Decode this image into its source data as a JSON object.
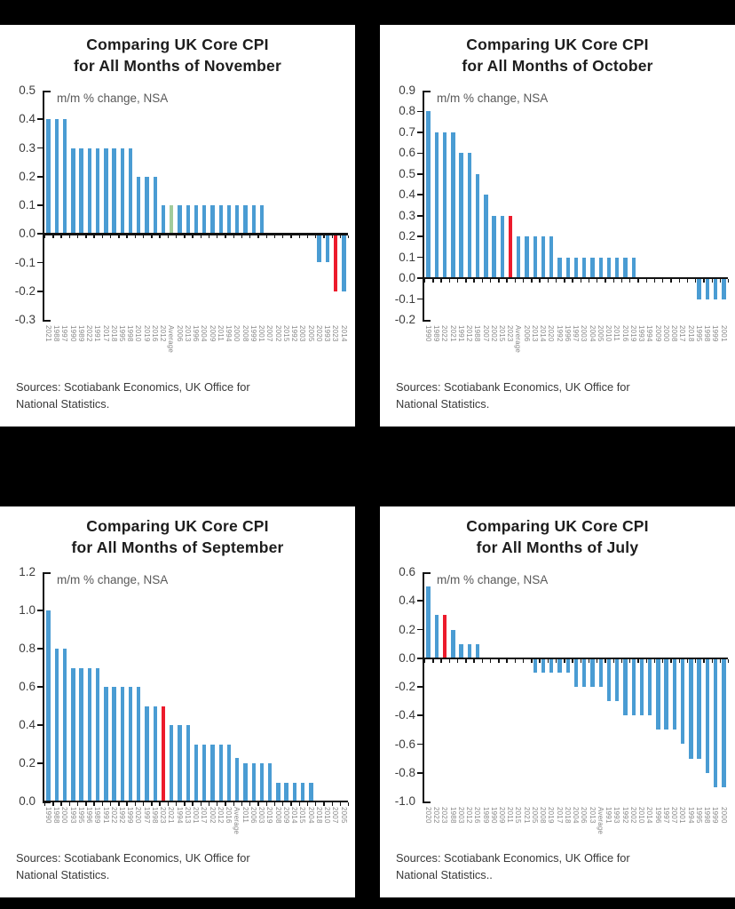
{
  "page": {
    "background": "#000000",
    "panel_background": "#ffffff"
  },
  "colors": {
    "bar_blue": "#4a9cd3",
    "bar_red": "#ec1b2c",
    "bar_green": "#a2cb9b",
    "axis": "#121212",
    "title_text": "#1d1d1d",
    "annotation_text": "#595959",
    "x_label_text": "#878787"
  },
  "chart_data": [
    {
      "type": "bar",
      "id": "november",
      "title_line1": "Comparing UK Core CPI",
      "title_line2": "for All Months of November",
      "annotation": "m/m % change, NSA",
      "sources_line1": "Sources: Scotiabank Economics, UK Office for",
      "sources_line2": "National Statistics.",
      "ylim": [
        -0.3,
        0.5
      ],
      "ytick_step": 0.1,
      "legend_position": "none",
      "grid": false,
      "categories": [
        "2021",
        "1988",
        "1997",
        "1990",
        "1989",
        "2022",
        "1991",
        "2017",
        "2018",
        "1995",
        "1998",
        "2010",
        "2019",
        "2016",
        "2012",
        "Average",
        "2006",
        "2013",
        "1996",
        "2004",
        "2009",
        "2011",
        "1994",
        "2000",
        "2008",
        "1999",
        "2001",
        "2007",
        "2002",
        "2015",
        "1992",
        "2003",
        "2005",
        "2020",
        "1993",
        "2023",
        "2014"
      ],
      "values": [
        0.4,
        0.4,
        0.4,
        0.3,
        0.3,
        0.3,
        0.3,
        0.3,
        0.3,
        0.3,
        0.3,
        0.2,
        0.2,
        0.2,
        0.1,
        0.1,
        0.1,
        0.1,
        0.1,
        0.1,
        0.1,
        0.1,
        0.1,
        0.1,
        0.1,
        0.1,
        0.1,
        0.0,
        0.0,
        0.0,
        0.0,
        0.0,
        0.0,
        -0.1,
        -0.1,
        -0.2,
        -0.2
      ],
      "bar_colors": [
        "blue",
        "blue",
        "blue",
        "blue",
        "blue",
        "blue",
        "blue",
        "blue",
        "blue",
        "blue",
        "blue",
        "blue",
        "blue",
        "blue",
        "blue",
        "green",
        "blue",
        "blue",
        "blue",
        "blue",
        "blue",
        "blue",
        "blue",
        "blue",
        "blue",
        "blue",
        "blue",
        "blue",
        "blue",
        "blue",
        "blue",
        "blue",
        "blue",
        "blue",
        "blue",
        "red",
        "blue"
      ]
    },
    {
      "type": "bar",
      "id": "october",
      "title_line1": "Comparing UK Core CPI",
      "title_line2": "for All Months of October",
      "annotation": "m/m % change, NSA",
      "sources_line1": "Sources: Scotiabank Economics, UK Office for",
      "sources_line2": "National Statistics.",
      "ylim": [
        -0.2,
        0.9
      ],
      "ytick_step": 0.1,
      "legend_position": "none",
      "grid": false,
      "categories": [
        "1990",
        "1989",
        "2022",
        "2021",
        "1991",
        "2012",
        "1988",
        "2007",
        "2002",
        "2015",
        "2023",
        "Average",
        "2006",
        "2013",
        "2014",
        "2020",
        "1992",
        "1996",
        "1997",
        "2003",
        "2004",
        "2005",
        "2010",
        "2011",
        "2016",
        "2019",
        "1993",
        "1994",
        "2009",
        "2000",
        "2008",
        "2017",
        "2018",
        "1995",
        "1998",
        "1999",
        "2001"
      ],
      "values": [
        0.8,
        0.7,
        0.7,
        0.7,
        0.6,
        0.6,
        0.5,
        0.4,
        0.3,
        0.3,
        0.3,
        0.2,
        0.2,
        0.2,
        0.2,
        0.2,
        0.1,
        0.1,
        0.1,
        0.1,
        0.1,
        0.1,
        0.1,
        0.1,
        0.1,
        0.1,
        0.0,
        0.0,
        0.0,
        0.0,
        0.0,
        0.0,
        0.0,
        -0.1,
        -0.1,
        -0.1,
        -0.1
      ],
      "bar_colors": [
        "blue",
        "blue",
        "blue",
        "blue",
        "blue",
        "blue",
        "blue",
        "blue",
        "blue",
        "blue",
        "red",
        "blue",
        "blue",
        "blue",
        "blue",
        "blue",
        "blue",
        "blue",
        "blue",
        "blue",
        "blue",
        "blue",
        "blue",
        "blue",
        "blue",
        "blue",
        "blue",
        "blue",
        "blue",
        "blue",
        "blue",
        "blue",
        "blue",
        "blue",
        "blue",
        "blue",
        "blue"
      ]
    },
    {
      "type": "bar",
      "id": "september",
      "title_line1": "Comparing UK Core CPI",
      "title_line2": "for All Months of September",
      "annotation": "m/m % change, NSA",
      "sources_line1": "Sources: Scotiabank Economics, UK Office for",
      "sources_line2": "National Statistics.",
      "ylim": [
        0.0,
        1.2
      ],
      "ytick_step": 0.2,
      "legend_position": "none",
      "grid": false,
      "categories": [
        "1990",
        "1988",
        "2000",
        "1993",
        "1995",
        "1996",
        "1989",
        "1991",
        "2022",
        "1992",
        "1999",
        "2020",
        "1997",
        "1998",
        "2023",
        "2021",
        "1994",
        "2013",
        "2001",
        "2017",
        "2002",
        "2012",
        "2016",
        "Average",
        "2011",
        "2006",
        "2003",
        "2019",
        "2008",
        "2009",
        "2014",
        "2015",
        "2004",
        "2018",
        "2010",
        "2007",
        "2005"
      ],
      "values": [
        1.0,
        0.8,
        0.8,
        0.7,
        0.7,
        0.7,
        0.7,
        0.6,
        0.6,
        0.6,
        0.6,
        0.6,
        0.5,
        0.5,
        0.5,
        0.4,
        0.4,
        0.4,
        0.3,
        0.3,
        0.3,
        0.3,
        0.3,
        0.23,
        0.2,
        0.2,
        0.2,
        0.2,
        0.1,
        0.1,
        0.1,
        0.1,
        0.1,
        0.0,
        0.0,
        0.0,
        0.0
      ],
      "bar_colors": [
        "blue",
        "blue",
        "blue",
        "blue",
        "blue",
        "blue",
        "blue",
        "blue",
        "blue",
        "blue",
        "blue",
        "blue",
        "blue",
        "blue",
        "red",
        "blue",
        "blue",
        "blue",
        "blue",
        "blue",
        "blue",
        "blue",
        "blue",
        "blue",
        "blue",
        "blue",
        "blue",
        "blue",
        "blue",
        "blue",
        "blue",
        "blue",
        "blue",
        "blue",
        "blue",
        "blue",
        "blue"
      ]
    },
    {
      "type": "bar",
      "id": "july",
      "title_line1": "Comparing UK Core CPI",
      "title_line2": "for All Months of July",
      "annotation": "m/m % change, NSA",
      "sources_line1": "Sources: Scotiabank Economics, UK Office for",
      "sources_line2": "National Statistics..",
      "ylim": [
        -1.0,
        0.6
      ],
      "ytick_step": 0.2,
      "legend_position": "none",
      "grid": false,
      "categories": [
        "2020",
        "2022",
        "2023",
        "1988",
        "2003",
        "2012",
        "2016",
        "1989",
        "1990",
        "2009",
        "2011",
        "2015",
        "2021",
        "2005",
        "2008",
        "2019",
        "2017",
        "2018",
        "2004",
        "2006",
        "2013",
        "Average",
        "1991",
        "1993",
        "1992",
        "2002",
        "2010",
        "2014",
        "1996",
        "1997",
        "2007",
        "2001",
        "1994",
        "1995",
        "1998",
        "1999",
        "2000"
      ],
      "values": [
        0.5,
        0.3,
        0.3,
        0.2,
        0.1,
        0.1,
        0.1,
        0.0,
        0.0,
        0.0,
        0.0,
        0.0,
        0.0,
        -0.1,
        -0.1,
        -0.1,
        -0.1,
        -0.1,
        -0.2,
        -0.2,
        -0.2,
        -0.2,
        -0.3,
        -0.3,
        -0.4,
        -0.4,
        -0.4,
        -0.4,
        -0.5,
        -0.5,
        -0.5,
        -0.6,
        -0.7,
        -0.7,
        -0.8,
        -0.9,
        -0.9
      ],
      "bar_colors": [
        "blue",
        "blue",
        "red",
        "blue",
        "blue",
        "blue",
        "blue",
        "blue",
        "blue",
        "blue",
        "blue",
        "blue",
        "blue",
        "blue",
        "blue",
        "blue",
        "blue",
        "blue",
        "blue",
        "blue",
        "blue",
        "blue",
        "blue",
        "blue",
        "blue",
        "blue",
        "blue",
        "blue",
        "blue",
        "blue",
        "blue",
        "blue",
        "blue",
        "blue",
        "blue",
        "blue",
        "blue"
      ]
    }
  ]
}
